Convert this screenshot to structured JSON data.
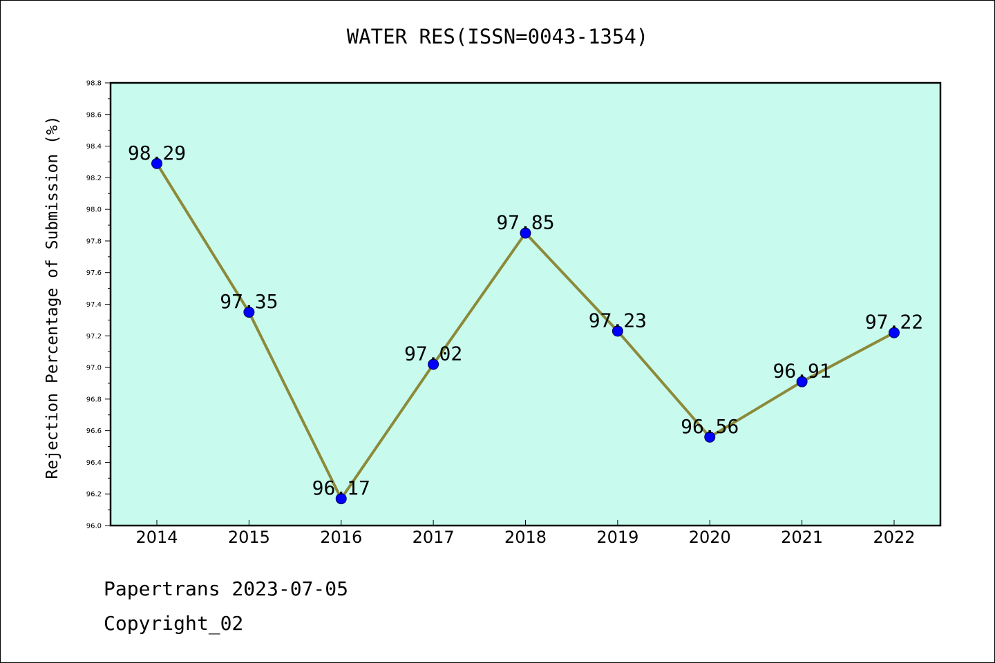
{
  "footer": {
    "line1": "Papertrans 2023-07-05",
    "line2": "Copyright_02"
  },
  "chart_data": {
    "type": "line",
    "title": "WATER RES(ISSN=0043-1354)",
    "xlabel": "",
    "ylabel": "Rejection Percentage of Submission (%)",
    "categories": [
      "2014",
      "2015",
      "2016",
      "2017",
      "2018",
      "2019",
      "2020",
      "2021",
      "2022"
    ],
    "series": [
      {
        "values": [
          98.29,
          97.35,
          96.17,
          97.02,
          97.85,
          97.23,
          96.56,
          96.91,
          97.22
        ],
        "data_labels": [
          "98.29",
          "97.35",
          "96.17",
          "97.02",
          "97.85",
          "97.23",
          "96.56",
          "96.91",
          "97.22"
        ]
      }
    ],
    "ylim": [
      96.0,
      98.8
    ],
    "yticks": [
      "96.0",
      "96.2",
      "96.4",
      "96.6",
      "96.8",
      "97.0",
      "97.2",
      "97.4",
      "97.6",
      "97.8",
      "98.0",
      "98.2",
      "98.4",
      "98.6",
      "98.8"
    ],
    "grid": false,
    "legend": "none",
    "colors": {
      "plot_background": "#c8fbee",
      "line": "#8c8a3a",
      "marker": "#0000ff",
      "axis": "#000000"
    }
  }
}
